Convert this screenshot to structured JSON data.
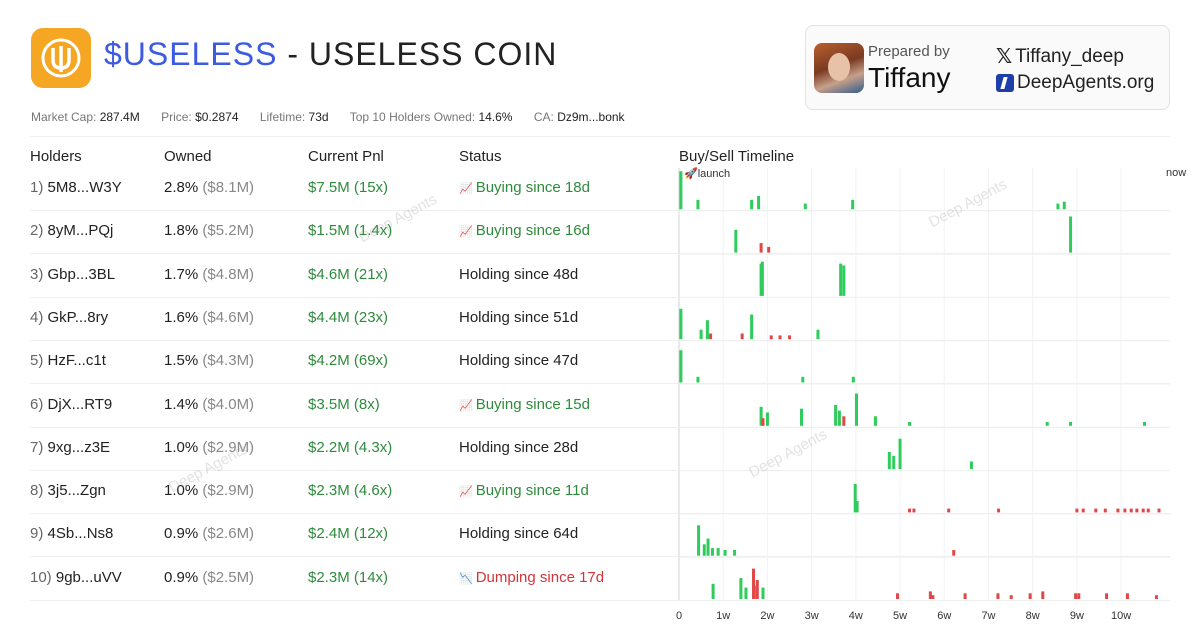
{
  "header": {
    "logo_icon": "useless-coin-logo-icon",
    "ticker": "$USELESS",
    "separator": " - ",
    "coin_name": "USELESS COIN",
    "accent_color": "#3c5be0",
    "logo_color": "#f5a623"
  },
  "metrics": {
    "market_cap_label": "Market Cap:",
    "market_cap": "287.4M",
    "price_label": "Price:",
    "price": "$0.2874",
    "lifetime_label": "Lifetime:",
    "lifetime": "73d",
    "top10_label": "Top 10 Holders Owned:",
    "top10": "14.6%",
    "ca_label": "CA:",
    "ca": "Dz9m...bonk"
  },
  "prepared": {
    "label": "Prepared by",
    "name": "Tiffany",
    "x_handle": "Tiffany_deep",
    "site": "DeepAgents.org"
  },
  "watermark": "Deep Agents",
  "columns": {
    "holders": "Holders",
    "owned": "Owned",
    "pnl": "Current Pnl",
    "status": "Status",
    "timeline": "Buy/Sell Timeline"
  },
  "rows": [
    {
      "idx": "1)",
      "holder": "5M8...W3Y",
      "owned": "2.8%",
      "owned_usd": "($8.1M)",
      "pnl": "$7.5M (15x)",
      "status": "Buying since 18d",
      "status_type": "buy"
    },
    {
      "idx": "2)",
      "holder": "8yM...PQj",
      "owned": "1.8%",
      "owned_usd": "($5.2M)",
      "pnl": "$1.5M (1.4x)",
      "status": "Buying since 16d",
      "status_type": "buy"
    },
    {
      "idx": "3)",
      "holder": "Gbp...3BL",
      "owned": "1.7%",
      "owned_usd": "($4.8M)",
      "pnl": "$4.6M (21x)",
      "status": "Holding since 48d",
      "status_type": "hold"
    },
    {
      "idx": "4)",
      "holder": "GkP...8ry",
      "owned": "1.6%",
      "owned_usd": "($4.6M)",
      "pnl": "$4.4M (23x)",
      "status": "Holding since 51d",
      "status_type": "hold"
    },
    {
      "idx": "5)",
      "holder": "HzF...c1t",
      "owned": "1.5%",
      "owned_usd": "($4.3M)",
      "pnl": "$4.2M (69x)",
      "status": "Holding since 47d",
      "status_type": "hold"
    },
    {
      "idx": "6)",
      "holder": "DjX...RT9",
      "owned": "1.4%",
      "owned_usd": "($4.0M)",
      "pnl": "$3.5M (8x)",
      "status": "Buying since 15d",
      "status_type": "buy"
    },
    {
      "idx": "7)",
      "holder": "9xg...z3E",
      "owned": "1.0%",
      "owned_usd": "($2.9M)",
      "pnl": "$2.2M (4.3x)",
      "status": "Holding since 28d",
      "status_type": "hold"
    },
    {
      "idx": "8)",
      "holder": "3j5...Zgn",
      "owned": "1.0%",
      "owned_usd": "($2.9M)",
      "pnl": "$2.3M (4.6x)",
      "status": "Buying since 11d",
      "status_type": "buy"
    },
    {
      "idx": "9)",
      "holder": "4Sb...Ns8",
      "owned": "0.9%",
      "owned_usd": "($2.6M)",
      "pnl": "$2.4M (12x)",
      "status": "Holding since 64d",
      "status_type": "hold"
    },
    {
      "idx": "10)",
      "holder": "9gb...uVV",
      "owned": "0.9%",
      "owned_usd": "($2.5M)",
      "pnl": "$2.3M (14x)",
      "status": "Dumping since 17d",
      "status_type": "dump"
    }
  ],
  "chart_data": {
    "type": "bar",
    "title": "Buy/Sell Timeline",
    "x_unit": "days since launch",
    "xlim": [
      0,
      76
    ],
    "x_start_label": "launch",
    "x_end_label": "now",
    "ticks": [
      {
        "day": 0,
        "label": "0"
      },
      {
        "day": 7,
        "label": "1w"
      },
      {
        "day": 14,
        "label": "2w"
      },
      {
        "day": 21,
        "label": "3w"
      },
      {
        "day": 28,
        "label": "4w"
      },
      {
        "day": 35,
        "label": "5w"
      },
      {
        "day": 42,
        "label": "6w"
      },
      {
        "day": 49,
        "label": "7w"
      },
      {
        "day": 56,
        "label": "8w"
      },
      {
        "day": 63,
        "label": "9w"
      },
      {
        "day": 70,
        "label": "10w"
      },
      {
        "day": 77,
        "label": "now"
      }
    ],
    "buy_color": "#2ecc5a",
    "sell_color": "#e04848",
    "series": [
      {
        "name": "5M8...W3Y",
        "buys": [
          [
            0.3,
            1.0
          ],
          [
            3.0,
            0.25
          ],
          [
            11.5,
            0.25
          ],
          [
            12.6,
            0.35
          ],
          [
            20,
            0.15
          ],
          [
            27.5,
            0.25
          ],
          [
            60,
            0.15
          ],
          [
            61,
            0.2
          ]
        ],
        "sells": []
      },
      {
        "name": "8yM...PQj",
        "buys": [
          [
            9,
            0.6
          ],
          [
            62,
            0.95
          ]
        ],
        "sells": [
          [
            13,
            0.25
          ],
          [
            14.2,
            0.15
          ]
        ]
      },
      {
        "name": "Gbp...3BL",
        "buys": [
          [
            13,
            0.85
          ],
          [
            13.2,
            0.9
          ],
          [
            25.6,
            0.85
          ],
          [
            26.1,
            0.8
          ]
        ],
        "sells": []
      },
      {
        "name": "GkP...8ry",
        "buys": [
          [
            0.3,
            0.8
          ],
          [
            3.5,
            0.25
          ],
          [
            4.5,
            0.5
          ],
          [
            11.5,
            0.65
          ],
          [
            22,
            0.25
          ]
        ],
        "sells": [
          [
            5,
            0.15
          ],
          [
            10,
            0.15
          ],
          [
            14.6,
            0.1
          ],
          [
            16,
            0.1
          ],
          [
            17.5,
            0.1
          ]
        ]
      },
      {
        "name": "HzF...c1t",
        "buys": [
          [
            0.3,
            0.85
          ],
          [
            3,
            0.15
          ],
          [
            19.6,
            0.15
          ],
          [
            27.6,
            0.15
          ]
        ],
        "sells": []
      },
      {
        "name": "DjX...RT9",
        "buys": [
          [
            13,
            0.5
          ],
          [
            14,
            0.35
          ],
          [
            19.4,
            0.45
          ],
          [
            24.8,
            0.55
          ],
          [
            25.4,
            0.4
          ],
          [
            28.1,
            0.85
          ],
          [
            31.1,
            0.25
          ],
          [
            36.5,
            0.1
          ],
          [
            58.3,
            0.1
          ],
          [
            62,
            0.1
          ],
          [
            73.7,
            0.1
          ]
        ],
        "sells": [
          [
            26.1,
            0.25
          ],
          [
            13.3,
            0.2
          ]
        ]
      },
      {
        "name": "9xg...z3E",
        "buys": [
          [
            33.3,
            0.45
          ],
          [
            34,
            0.35
          ],
          [
            35,
            0.8
          ],
          [
            46.3,
            0.2
          ]
        ],
        "sells": []
      },
      {
        "name": "3j5...Zgn",
        "buys": [
          [
            27.9,
            0.75
          ],
          [
            28.2,
            0.3
          ]
        ],
        "sells": [
          [
            36.5,
            0.1
          ],
          [
            37.2,
            0.1
          ],
          [
            42.7,
            0.1
          ],
          [
            50.6,
            0.1
          ],
          [
            63,
            0.1
          ],
          [
            64,
            0.1
          ],
          [
            66,
            0.1
          ],
          [
            67.5,
            0.1
          ],
          [
            69.5,
            0.1
          ],
          [
            70.6,
            0.1
          ],
          [
            71.6,
            0.1
          ],
          [
            72.5,
            0.1
          ],
          [
            73.5,
            0.1
          ],
          [
            74.3,
            0.1
          ],
          [
            76,
            0.1
          ]
        ]
      },
      {
        "name": "4Sb...Ns8",
        "buys": [
          [
            3.1,
            0.8
          ],
          [
            4,
            0.3
          ],
          [
            4.6,
            0.45
          ],
          [
            5.3,
            0.2
          ],
          [
            6.2,
            0.2
          ],
          [
            7.3,
            0.15
          ],
          [
            8.8,
            0.15
          ]
        ],
        "sells": [
          [
            43.5,
            0.15
          ]
        ]
      },
      {
        "name": "9gb...uVV",
        "buys": [
          [
            5.4,
            0.4
          ],
          [
            9.8,
            0.55
          ],
          [
            10.6,
            0.3
          ],
          [
            12,
            0.35
          ],
          [
            13.3,
            0.3
          ]
        ],
        "sells": [
          [
            11.8,
            0.8
          ],
          [
            12.4,
            0.5
          ],
          [
            34.6,
            0.15
          ],
          [
            39.8,
            0.2
          ],
          [
            40.2,
            0.1
          ],
          [
            45.3,
            0.15
          ],
          [
            50.5,
            0.15
          ],
          [
            52.6,
            0.1
          ],
          [
            55.6,
            0.15
          ],
          [
            57.6,
            0.2
          ],
          [
            62.8,
            0.15
          ],
          [
            63.3,
            0.15
          ],
          [
            67.7,
            0.15
          ],
          [
            71,
            0.15
          ],
          [
            75.6,
            0.1
          ]
        ]
      }
    ]
  }
}
